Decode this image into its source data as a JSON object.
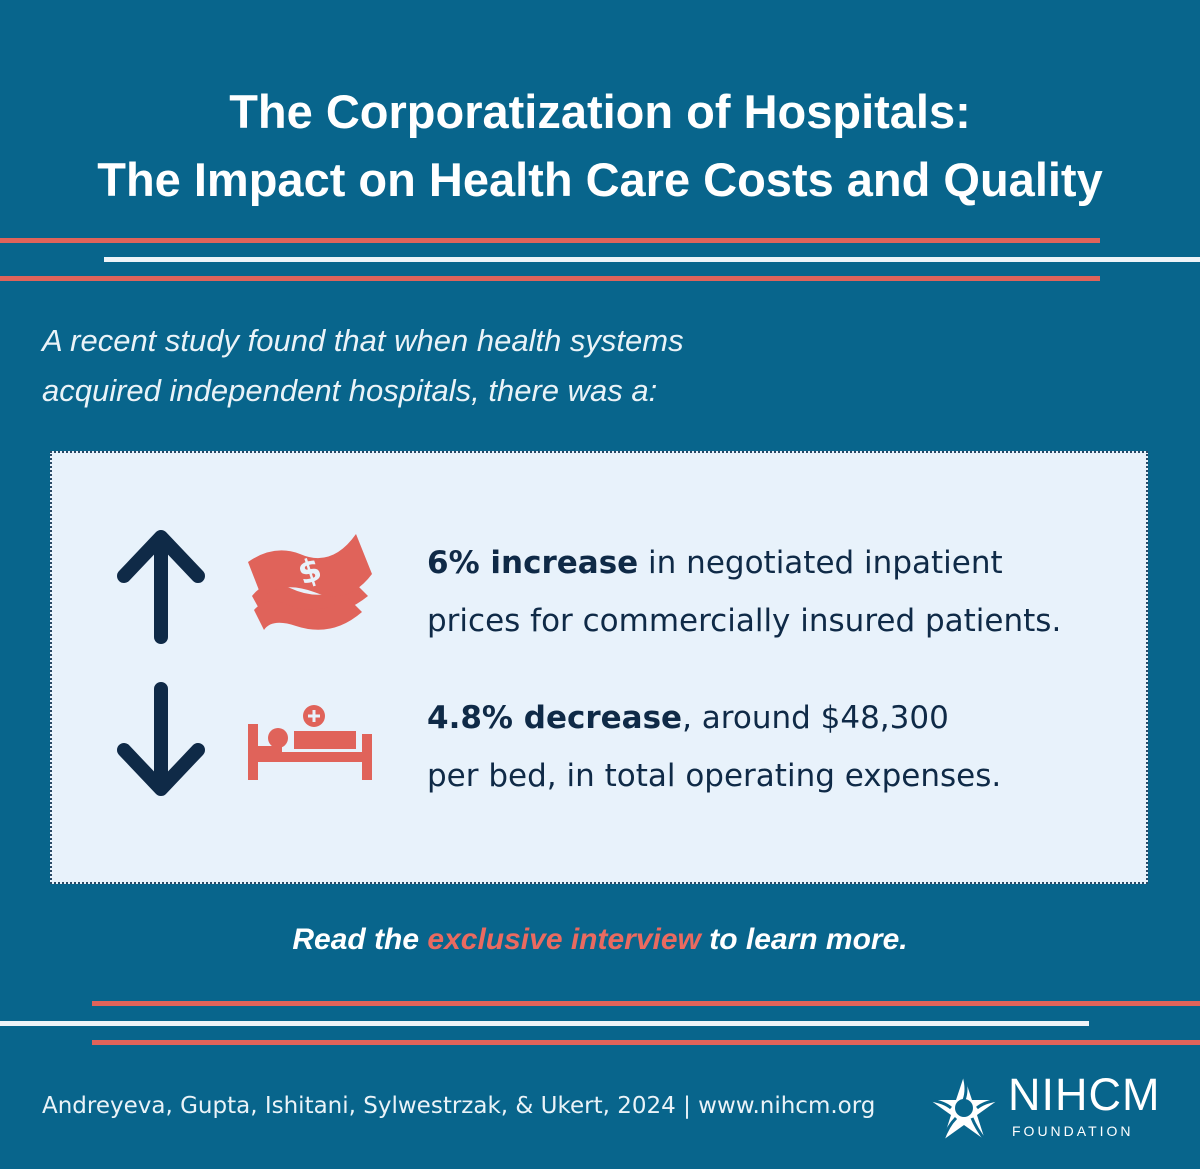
{
  "header": {
    "title_line1": "The Corporatization of Hospitals:",
    "title_line2": "The Impact on Health Care Costs and Quality"
  },
  "intro": {
    "line1": "A recent study found that when health systems",
    "line2": "acquired independent hospitals, there was a:"
  },
  "findings": [
    {
      "direction_icon": "arrow-up-icon",
      "icon": "money-icon",
      "highlight": "6% increase",
      "line1_rest": " in negotiated inpatient",
      "line2": "prices for commercially insured patients."
    },
    {
      "direction_icon": "arrow-down-icon",
      "icon": "hospital-bed-icon",
      "highlight": "4.8% decrease",
      "line1_rest": ", around $48,300",
      "line2": "per bed, in total operating expenses."
    }
  ],
  "cta": {
    "prefix": "Read the ",
    "link": "exclusive interview",
    "suffix": " to learn more."
  },
  "footer": {
    "citation": "Andreyeva, Gupta, Ishitani, Sylwestrzak, & Ukert, 2024 | www.nihcm.org",
    "logo_name": "NIHCM",
    "logo_sub": "FOUNDATION"
  },
  "colors": {
    "background": "#08658c",
    "accent_red": "#e0635a",
    "navy": "#0f2a47",
    "box": "#e8f2fb"
  }
}
